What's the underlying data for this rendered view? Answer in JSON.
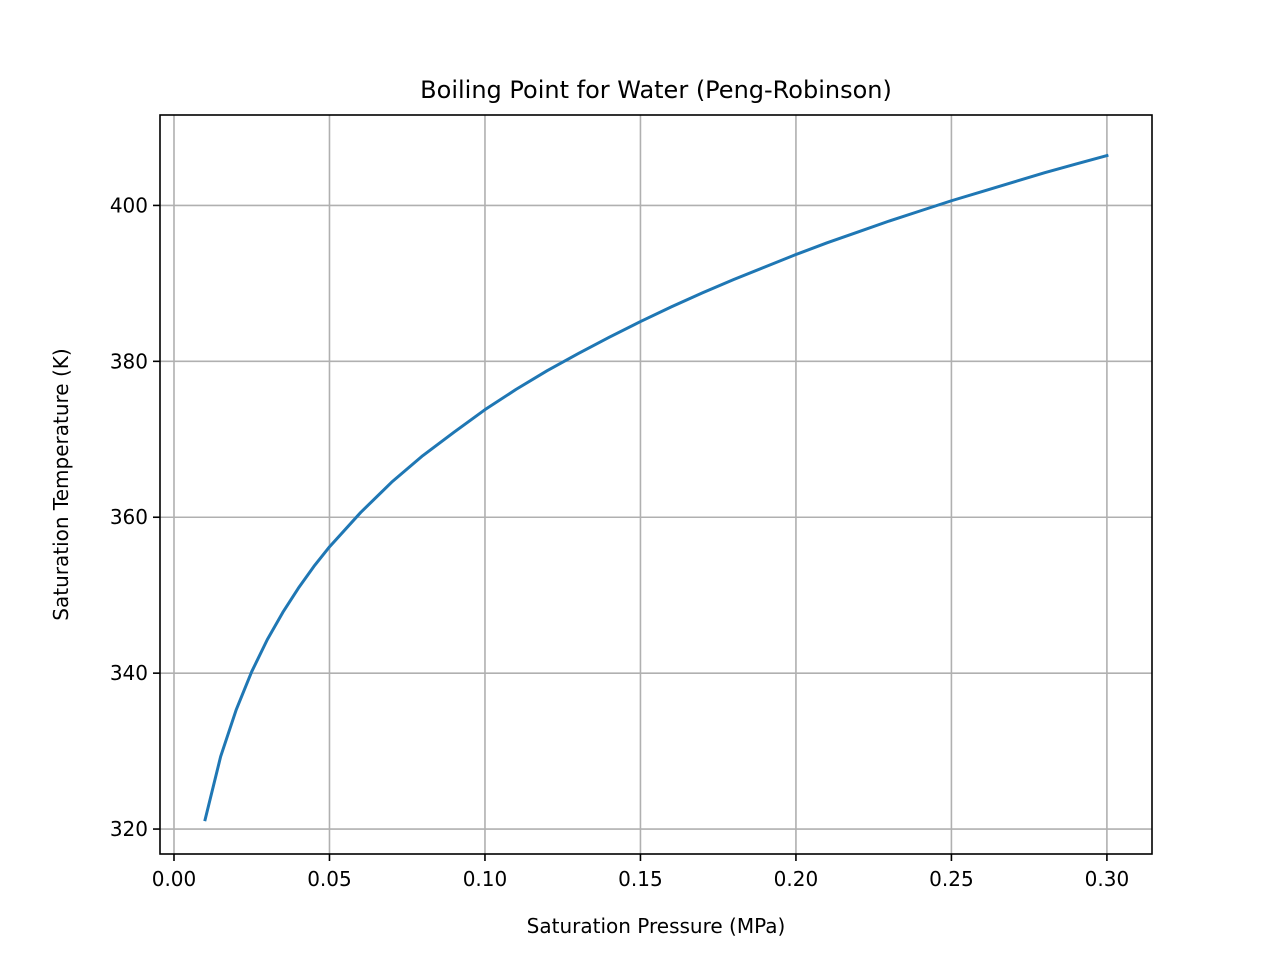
{
  "chart_data": {
    "type": "line",
    "title": "Boiling Point for Water (Peng-Robinson)",
    "xlabel": "Saturation Pressure (MPa)",
    "ylabel": "Saturation Temperature (K)",
    "xlim": [
      -0.0045,
      0.3145
    ],
    "ylim": [
      316.8,
      411.6
    ],
    "grid": true,
    "x_ticks": [
      0.0,
      0.05,
      0.1,
      0.15,
      0.2,
      0.25,
      0.3
    ],
    "x_tick_labels": [
      "0.00",
      "0.05",
      "0.10",
      "0.15",
      "0.20",
      "0.25",
      "0.30"
    ],
    "y_ticks": [
      320,
      340,
      360,
      380,
      400
    ],
    "y_tick_labels": [
      "320",
      "340",
      "360",
      "380",
      "400"
    ],
    "series": [
      {
        "color": "#1f77b4",
        "x": [
          0.01,
          0.015,
          0.02,
          0.025,
          0.03,
          0.035,
          0.04,
          0.045,
          0.05,
          0.06,
          0.07,
          0.08,
          0.09,
          0.1,
          0.11,
          0.12,
          0.13,
          0.14,
          0.15,
          0.16,
          0.17,
          0.18,
          0.19,
          0.2,
          0.21,
          0.22,
          0.23,
          0.24,
          0.25,
          0.26,
          0.27,
          0.28,
          0.29,
          0.3
        ],
        "y": [
          321.2,
          329.3,
          335.3,
          340.2,
          344.3,
          347.8,
          350.9,
          353.7,
          356.2,
          360.6,
          364.5,
          367.9,
          370.9,
          373.8,
          376.4,
          378.8,
          381.0,
          383.1,
          385.1,
          387.0,
          388.8,
          390.5,
          392.1,
          393.7,
          395.2,
          396.6,
          398.0,
          399.3,
          400.6,
          401.8,
          403.0,
          404.2,
          405.3,
          406.4
        ]
      }
    ]
  }
}
